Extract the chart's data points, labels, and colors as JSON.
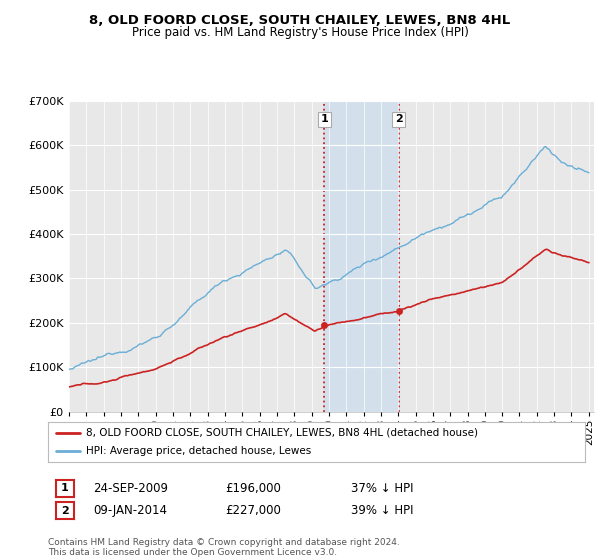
{
  "title": "8, OLD FOORD CLOSE, SOUTH CHAILEY, LEWES, BN8 4HL",
  "subtitle": "Price paid vs. HM Land Registry's House Price Index (HPI)",
  "legend_label_red": "8, OLD FOORD CLOSE, SOUTH CHAILEY, LEWES, BN8 4HL (detached house)",
  "legend_label_blue": "HPI: Average price, detached house, Lewes",
  "transaction1_date": "24-SEP-2009",
  "transaction1_price": "£196,000",
  "transaction1_hpi": "37% ↓ HPI",
  "transaction2_date": "09-JAN-2014",
  "transaction2_price": "£227,000",
  "transaction2_hpi": "39% ↓ HPI",
  "footer": "Contains HM Land Registry data © Crown copyright and database right 2024.\nThis data is licensed under the Open Government Licence v3.0.",
  "ylim": [
    0,
    700000
  ],
  "yticks": [
    0,
    100000,
    200000,
    300000,
    400000,
    500000,
    600000,
    700000
  ],
  "background_color": "#ffffff",
  "plot_bg_color": "#e8e8e8",
  "hpi_color": "#6baed6",
  "price_color": "#cc2222",
  "shade_color": "#c6dbef",
  "vline_color": "#cc2222",
  "transaction1_x": 2009.73,
  "transaction2_x": 2014.03,
  "transaction1_y": 196000,
  "transaction2_y": 227000,
  "xlim_left": 1995,
  "xlim_right": 2025.3
}
